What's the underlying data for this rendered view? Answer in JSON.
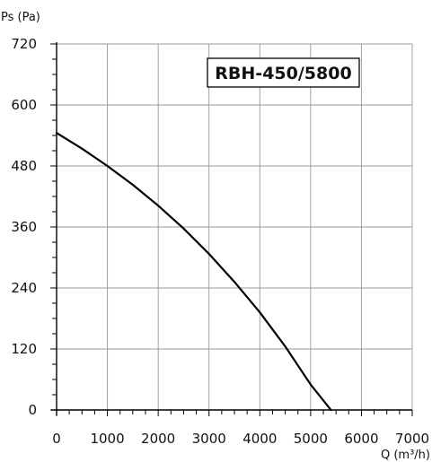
{
  "chart_data": {
    "type": "line",
    "ylabel": "Ps (Pa)",
    "xlabel": "Q (m³/h)",
    "xlim": [
      0,
      7000
    ],
    "ylim": [
      0,
      720
    ],
    "x_ticks": [
      "0",
      "1000",
      "2000",
      "3000",
      "4000",
      "5000",
      "6000",
      "7000"
    ],
    "y_ticks": [
      "0",
      "120",
      "240",
      "360",
      "480",
      "600",
      "720"
    ],
    "x_tick_values": [
      0,
      1000,
      2000,
      3000,
      4000,
      5000,
      6000,
      7000
    ],
    "y_tick_values": [
      0,
      120,
      240,
      360,
      480,
      600,
      720
    ],
    "x_minor_step": 250,
    "y_minor_step": 30,
    "grid": true,
    "annotation": "RBH-450/5800",
    "series": [
      {
        "x": [
          0,
          500,
          1000,
          1500,
          2000,
          2500,
          3000,
          3500,
          4000,
          4500,
          5000,
          5400
        ],
        "y": [
          545,
          514,
          480,
          443,
          402,
          357,
          307,
          252,
          192,
          125,
          50,
          0
        ]
      }
    ],
    "colors": {
      "line": "#000000",
      "grid": "#999999",
      "axis": "#000000"
    }
  }
}
